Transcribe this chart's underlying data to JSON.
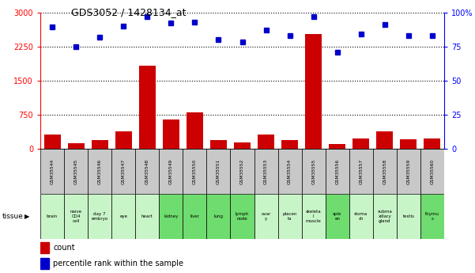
{
  "title": "GDS3052 / 1428134_at",
  "gsm_labels": [
    "GSM35544",
    "GSM35545",
    "GSM35546",
    "GSM35547",
    "GSM35548",
    "GSM35549",
    "GSM35550",
    "GSM35551",
    "GSM35552",
    "GSM35553",
    "GSM35554",
    "GSM35555",
    "GSM35556",
    "GSM35557",
    "GSM35558",
    "GSM35559",
    "GSM35560"
  ],
  "tissue_labels": [
    "brain",
    "naive\nCD4\ncell",
    "day 7\nembryо",
    "eye",
    "heart",
    "kidney",
    "liver",
    "lung",
    "lymph\nnode",
    "ovar\ny",
    "placen\nta",
    "skeleta\nl\nmuscle",
    "sple\nen",
    "stoma\nch",
    "subma\nxillary\ngland",
    "testis",
    "thymu\ns"
  ],
  "tissue_colors": [
    "#c8f5c8",
    "#c8f5c8",
    "#c8f5c8",
    "#c8f5c8",
    "#c8f5c8",
    "#6edc6e",
    "#6edc6e",
    "#6edc6e",
    "#6edc6e",
    "#c8f5c8",
    "#c8f5c8",
    "#c8f5c8",
    "#6edc6e",
    "#c8f5c8",
    "#c8f5c8",
    "#c8f5c8",
    "#6edc6e"
  ],
  "counts": [
    320,
    120,
    200,
    390,
    1820,
    640,
    800,
    190,
    140,
    310,
    200,
    2520,
    100,
    230,
    390,
    210,
    230
  ],
  "percentiles": [
    89,
    75,
    82,
    90,
    97,
    92,
    93,
    80,
    78,
    87,
    83,
    97,
    71,
    84,
    91,
    83,
    83
  ],
  "ylim_left": [
    0,
    3000
  ],
  "ylim_right": [
    0,
    100
  ],
  "yticks_left": [
    0,
    750,
    1500,
    2250,
    3000
  ],
  "yticks_right": [
    0,
    25,
    50,
    75,
    100
  ],
  "bar_color": "#cc0000",
  "dot_color": "#0000cc",
  "background_color": "#ffffff",
  "grid_color": "#000000",
  "gsm_bg_color": "#c8c8c8",
  "legend_count_label": "count",
  "legend_pct_label": "percentile rank within the sample"
}
